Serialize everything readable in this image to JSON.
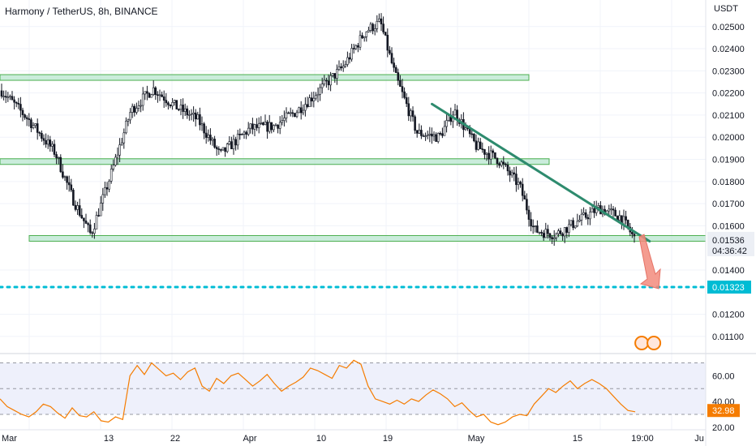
{
  "header": {
    "title": "Harmony / TetherUS, 8h, BINANCE"
  },
  "price_scale": {
    "currency": "USDT",
    "ticks": [
      "0.02500",
      "0.02400",
      "0.02300",
      "0.02200",
      "0.02100",
      "0.02000",
      "0.01900",
      "0.01800",
      "0.01700",
      "0.01600",
      "0.01400",
      "0.01200",
      "0.01100"
    ],
    "current_price": "0.01536",
    "countdown": "04:36:42",
    "target_price": "0.01323"
  },
  "rsi_scale": {
    "ticks": [
      "60.00",
      "40.00",
      "20.00"
    ],
    "current": "32.98"
  },
  "time_axis": {
    "labels": [
      "Mar",
      "13",
      "22",
      "Apr",
      "10",
      "19",
      "May",
      "15",
      "19:00",
      "Ju"
    ]
  },
  "colors": {
    "up": "#26a69a",
    "down": "#ef5350",
    "candle": "#131722",
    "zone_fill": "#b8e6cf",
    "zone_border": "#4caf50",
    "trendline": "#2e8b6e",
    "target_line": "#00bcd4",
    "arrow": "#f28b7d",
    "rsi_line": "#f57c00",
    "rsi_band": "#eef0fb"
  },
  "chart_data": {
    "type": "candlestick",
    "title": "Harmony / TetherUS, 8h, BINANCE",
    "y_unit": "USDT",
    "ylim": [
      0.0103,
      0.0262
    ],
    "close_series": [
      {
        "date": "Mar 1",
        "close": 0.0221
      },
      {
        "date": "Mar 4",
        "close": 0.0208
      },
      {
        "date": "Mar 7",
        "close": 0.0193
      },
      {
        "date": "Mar 9",
        "close": 0.0172
      },
      {
        "date": "Mar 11",
        "close": 0.0156
      },
      {
        "date": "Mar 13",
        "close": 0.018
      },
      {
        "date": "Mar 16",
        "close": 0.0212
      },
      {
        "date": "Mar 19",
        "close": 0.0222
      },
      {
        "date": "Mar 22",
        "close": 0.0214
      },
      {
        "date": "Mar 25",
        "close": 0.0208
      },
      {
        "date": "Mar 28",
        "close": 0.0192
      },
      {
        "date": "Apr 1",
        "close": 0.0204
      },
      {
        "date": "Apr 4",
        "close": 0.0205
      },
      {
        "date": "Apr 7",
        "close": 0.0212
      },
      {
        "date": "Apr 10",
        "close": 0.0222
      },
      {
        "date": "Apr 13",
        "close": 0.0232
      },
      {
        "date": "Apr 16",
        "close": 0.0248
      },
      {
        "date": "Apr 18",
        "close": 0.0252
      },
      {
        "date": "Apr 20",
        "close": 0.0228
      },
      {
        "date": "Apr 23",
        "close": 0.0202
      },
      {
        "date": "Apr 26",
        "close": 0.02
      },
      {
        "date": "Apr 28",
        "close": 0.0212
      },
      {
        "date": "May 1",
        "close": 0.0196
      },
      {
        "date": "May 4",
        "close": 0.019
      },
      {
        "date": "May 7",
        "close": 0.0178
      },
      {
        "date": "May 9",
        "close": 0.0158
      },
      {
        "date": "May 12",
        "close": 0.0156
      },
      {
        "date": "May 15",
        "close": 0.0162
      },
      {
        "date": "May 18",
        "close": 0.0168
      },
      {
        "date": "May 21",
        "close": 0.0164
      },
      {
        "date": "May 23",
        "close": 0.01536
      }
    ],
    "support_zones": [
      {
        "low": 0.02262,
        "high": 0.02278
      },
      {
        "low": 0.01882,
        "high": 0.01898
      },
      {
        "low": 0.01538,
        "high": 0.01548
      }
    ],
    "trendline": [
      {
        "date": "Apr 25",
        "price": 0.0215
      },
      {
        "date": "May 25",
        "price": 0.0153
      }
    ],
    "target": 0.01323,
    "rsi": {
      "ylim": [
        18,
        76
      ],
      "levels": [
        70,
        50,
        30
      ],
      "current": 32.98,
      "values": [
        42,
        36,
        33,
        30,
        28,
        32,
        38,
        36,
        31,
        27,
        35,
        29,
        28,
        32,
        25,
        24,
        28,
        26,
        60,
        68,
        61,
        70,
        65,
        60,
        62,
        57,
        63,
        66,
        52,
        48,
        58,
        54,
        60,
        62,
        57,
        52,
        56,
        61,
        54,
        48,
        52,
        55,
        59,
        66,
        64,
        61,
        58,
        68,
        66,
        72,
        69,
        52,
        42,
        40,
        38,
        41,
        38,
        42,
        40,
        45,
        49,
        46,
        42,
        36,
        39,
        33,
        28,
        30,
        24,
        22,
        24,
        28,
        30,
        29,
        38,
        44,
        50,
        47,
        52,
        56,
        50,
        54,
        57,
        54,
        50,
        44,
        38,
        33,
        32
      ]
    }
  }
}
